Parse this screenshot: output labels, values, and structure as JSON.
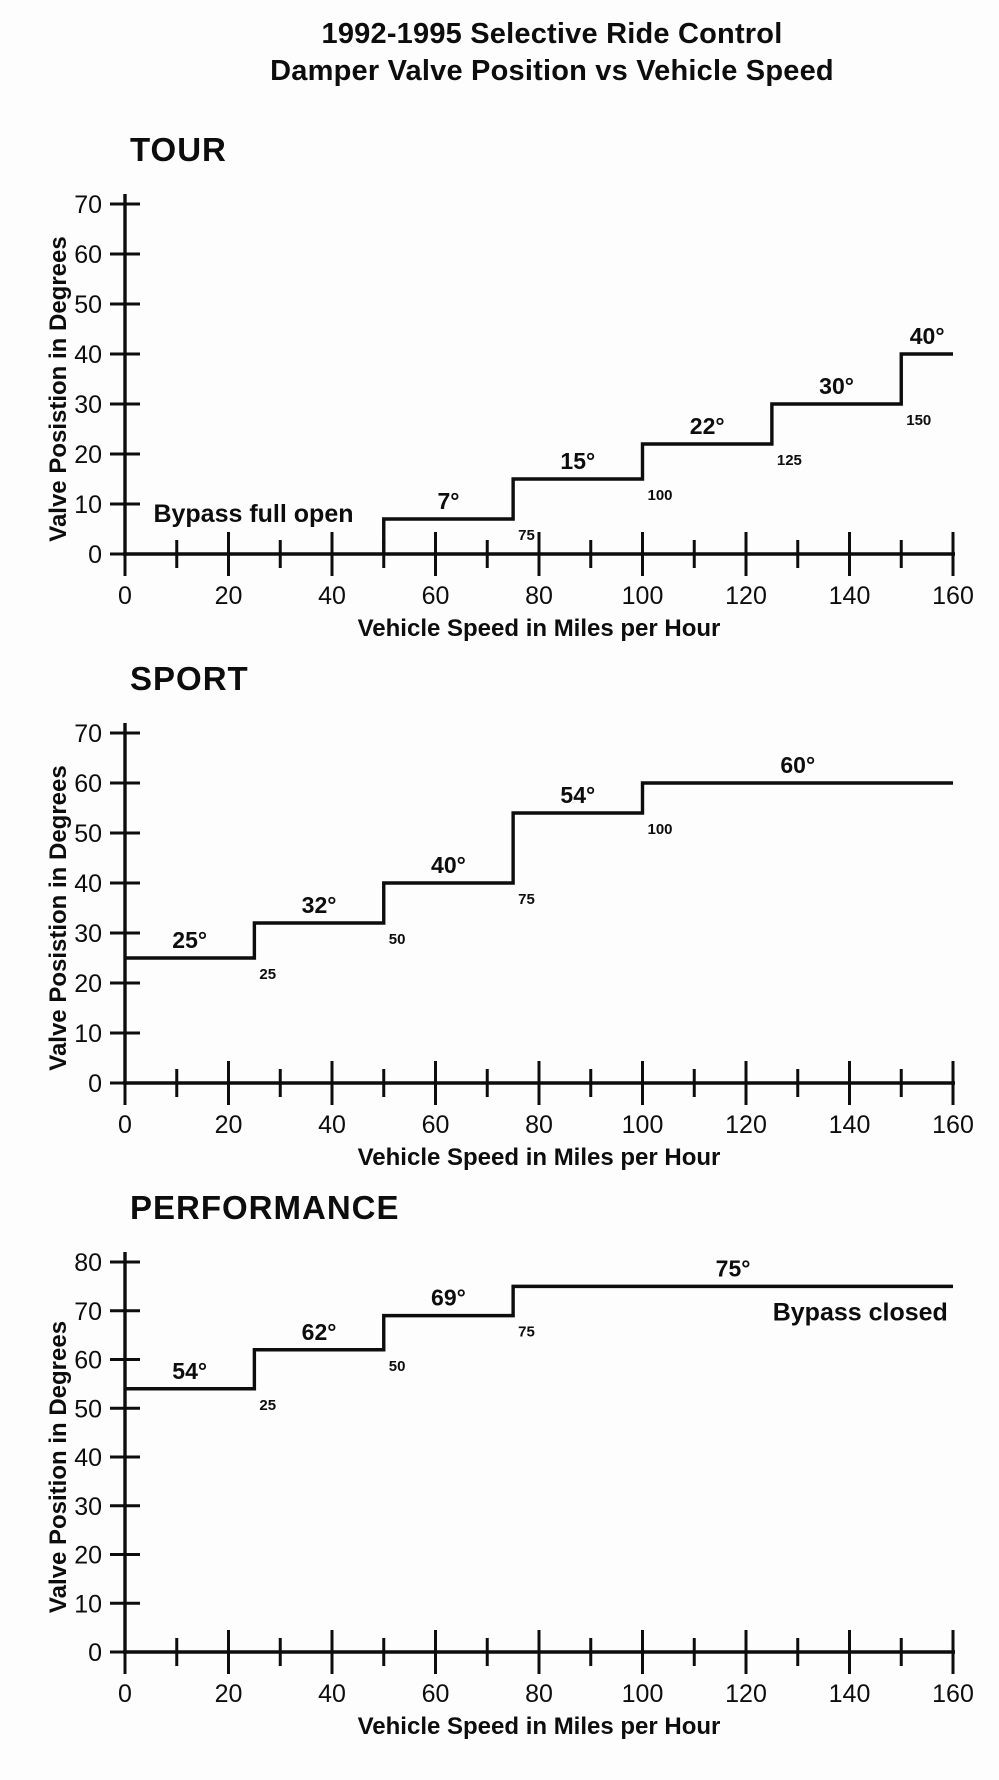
{
  "page": {
    "title_line1": "1992-1995 Selective Ride Control",
    "title_line2": "Damper Valve Position vs Vehicle Speed"
  },
  "colors": {
    "ink": "#0d0d0d",
    "background": "#fdfdfd"
  },
  "chart_data": [
    {
      "type": "line",
      "line_style": "step",
      "title": "TOUR",
      "xlabel": "Vehicle Speed in Miles per Hour",
      "ylabel": "Valve Posistion in Degrees",
      "xlim": [
        0,
        160
      ],
      "ylim": [
        0,
        70
      ],
      "x_tick_interval": 10,
      "x_label_interval": 20,
      "y_tick_interval": 10,
      "starts_at_y_axis": false,
      "steps": [
        {
          "from_mph": 50,
          "to_mph": 75,
          "valve_degrees": 7,
          "label": "7°"
        },
        {
          "from_mph": 75,
          "to_mph": 100,
          "valve_degrees": 15,
          "label": "15°"
        },
        {
          "from_mph": 100,
          "to_mph": 125,
          "valve_degrees": 22,
          "label": "22°"
        },
        {
          "from_mph": 125,
          "to_mph": 150,
          "valve_degrees": 30,
          "label": "30°"
        },
        {
          "from_mph": 150,
          "to_mph": 160,
          "valve_degrees": 40,
          "label": "40°"
        }
      ],
      "transition_speed_labels": [
        "75",
        "100",
        "125",
        "150"
      ],
      "annotation": {
        "text": "Bypass full open",
        "align": "left"
      }
    },
    {
      "type": "line",
      "line_style": "step",
      "title": "SPORT",
      "xlabel": "Vehicle Speed in Miles per Hour",
      "ylabel": "Valve Posistion in Degrees",
      "xlim": [
        0,
        160
      ],
      "ylim": [
        0,
        70
      ],
      "x_tick_interval": 10,
      "x_label_interval": 20,
      "y_tick_interval": 10,
      "starts_at_y_axis": true,
      "steps": [
        {
          "from_mph": 0,
          "to_mph": 25,
          "valve_degrees": 25,
          "label": "25°"
        },
        {
          "from_mph": 25,
          "to_mph": 50,
          "valve_degrees": 32,
          "label": "32°"
        },
        {
          "from_mph": 50,
          "to_mph": 75,
          "valve_degrees": 40,
          "label": "40°"
        },
        {
          "from_mph": 75,
          "to_mph": 100,
          "valve_degrees": 54,
          "label": "54°"
        },
        {
          "from_mph": 100,
          "to_mph": 160,
          "valve_degrees": 60,
          "label": "60°"
        }
      ],
      "transition_speed_labels": [
        "25",
        "50",
        "75",
        "100"
      ],
      "annotation": null
    },
    {
      "type": "line",
      "line_style": "step",
      "title": "PERFORMANCE",
      "xlabel": "Vehicle Speed in Miles per Hour",
      "ylabel": "Valve Position in Degrees",
      "xlim": [
        0,
        160
      ],
      "ylim": [
        0,
        80
      ],
      "x_tick_interval": 10,
      "x_label_interval": 20,
      "y_tick_interval": 10,
      "starts_at_y_axis": true,
      "steps": [
        {
          "from_mph": 0,
          "to_mph": 25,
          "valve_degrees": 54,
          "label": "54°"
        },
        {
          "from_mph": 25,
          "to_mph": 50,
          "valve_degrees": 62,
          "label": "62°"
        },
        {
          "from_mph": 50,
          "to_mph": 75,
          "valve_degrees": 69,
          "label": "69°"
        },
        {
          "from_mph": 75,
          "to_mph": 160,
          "valve_degrees": 75,
          "label": "75°"
        }
      ],
      "transition_speed_labels": [
        "25",
        "50",
        "75"
      ],
      "annotation": {
        "text": "Bypass closed",
        "align": "right"
      }
    }
  ]
}
